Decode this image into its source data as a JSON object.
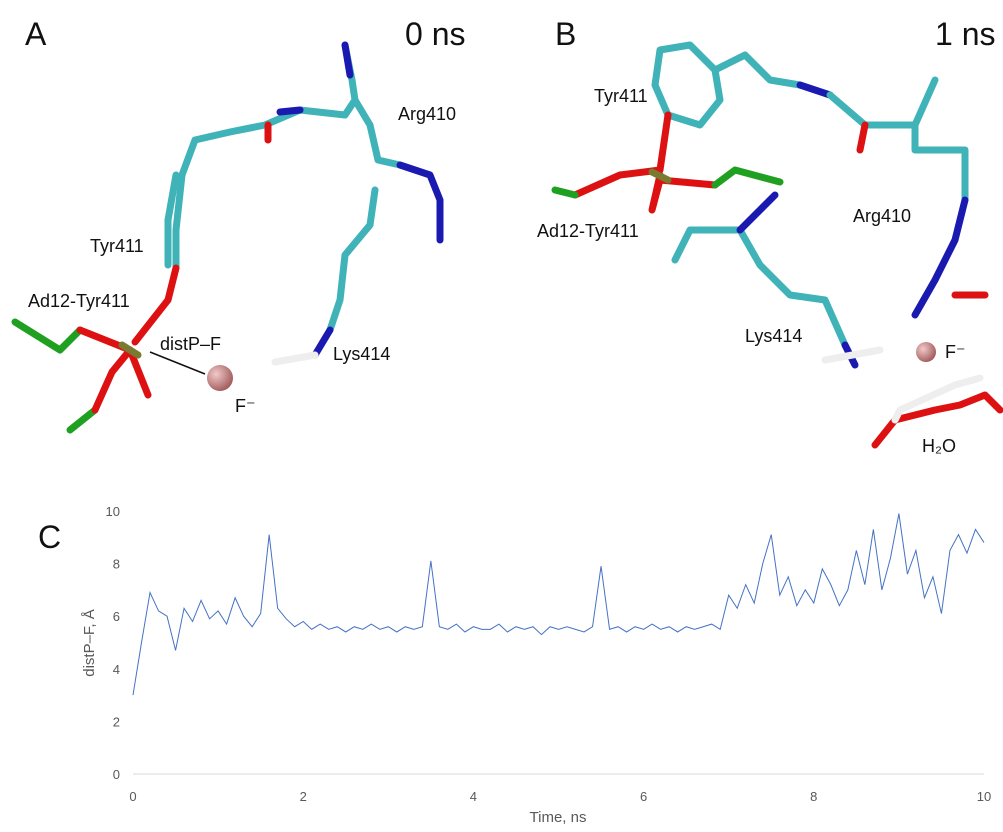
{
  "panels": [
    {
      "letter": "A",
      "time": "0 ns",
      "labels": [
        "Tyr411",
        "Ad12-Tyr411",
        "distP–F",
        "F⁻",
        "Arg410",
        "Lys414"
      ]
    },
    {
      "letter": "B",
      "time": "1 ns",
      "labels": [
        "Tyr411",
        "Ad12-Tyr411",
        "Arg410",
        "Lys414",
        "F⁻",
        "H₂O"
      ]
    }
  ],
  "chart_data": {
    "type": "line",
    "panel_letter": "C",
    "x_label": "Time, ns",
    "y_label": "distP–F, Å",
    "x": [
      0,
      0.1,
      0.2,
      0.3,
      0.4,
      0.5,
      0.6,
      0.7,
      0.8,
      0.9,
      1,
      1.1,
      1.2,
      1.3,
      1.4,
      1.5,
      1.6,
      1.7,
      1.8,
      1.9,
      2,
      2.1,
      2.2,
      2.3,
      2.4,
      2.5,
      2.6,
      2.7,
      2.8,
      2.9,
      3,
      3.1,
      3.2,
      3.3,
      3.4,
      3.5,
      3.6,
      3.7,
      3.8,
      3.9,
      4,
      4.1,
      4.2,
      4.3,
      4.4,
      4.5,
      4.6,
      4.7,
      4.8,
      4.9,
      5,
      5.1,
      5.2,
      5.3,
      5.4,
      5.5,
      5.6,
      5.7,
      5.8,
      5.9,
      6,
      6.1,
      6.2,
      6.3,
      6.4,
      6.5,
      6.6,
      6.7,
      6.8,
      6.9,
      7,
      7.1,
      7.2,
      7.3,
      7.4,
      7.5,
      7.6,
      7.7,
      7.8,
      7.9,
      8,
      8.1,
      8.2,
      8.3,
      8.4,
      8.5,
      8.6,
      8.7,
      8.8,
      8.9,
      9,
      9.1,
      9.2,
      9.3,
      9.4,
      9.5,
      9.6,
      9.7,
      9.8,
      9.9,
      10
    ],
    "series": [
      {
        "color": "#4472c4",
        "values": [
          3.0,
          5.0,
          6.9,
          6.2,
          6.0,
          4.7,
          6.3,
          5.8,
          6.6,
          5.9,
          6.2,
          5.7,
          6.7,
          6.0,
          5.6,
          6.1,
          9.1,
          6.3,
          5.9,
          5.6,
          5.8,
          5.5,
          5.7,
          5.5,
          5.6,
          5.4,
          5.6,
          5.5,
          5.7,
          5.5,
          5.6,
          5.4,
          5.6,
          5.5,
          5.6,
          8.1,
          5.6,
          5.5,
          5.7,
          5.4,
          5.6,
          5.5,
          5.5,
          5.7,
          5.4,
          5.6,
          5.5,
          5.6,
          5.3,
          5.6,
          5.5,
          5.6,
          5.5,
          5.4,
          5.6,
          7.9,
          5.5,
          5.6,
          5.4,
          5.6,
          5.5,
          5.7,
          5.5,
          5.6,
          5.4,
          5.6,
          5.5,
          5.6,
          5.7,
          5.5,
          6.8,
          6.3,
          7.2,
          6.5,
          8.0,
          9.1,
          6.8,
          7.5,
          6.4,
          7.0,
          6.5,
          7.8,
          7.2,
          6.4,
          7.0,
          8.5,
          7.2,
          9.3,
          7.0,
          8.2,
          9.9,
          7.6,
          8.5,
          6.7,
          7.5,
          6.1,
          8.5,
          9.1,
          8.4,
          9.3,
          8.8
        ]
      }
    ],
    "xlim": [
      0,
      10
    ],
    "ylim": [
      0,
      10
    ],
    "xticks": [
      0,
      2,
      4,
      6,
      8,
      10
    ],
    "yticks": [
      0,
      2,
      4,
      6,
      8,
      10
    ]
  }
}
